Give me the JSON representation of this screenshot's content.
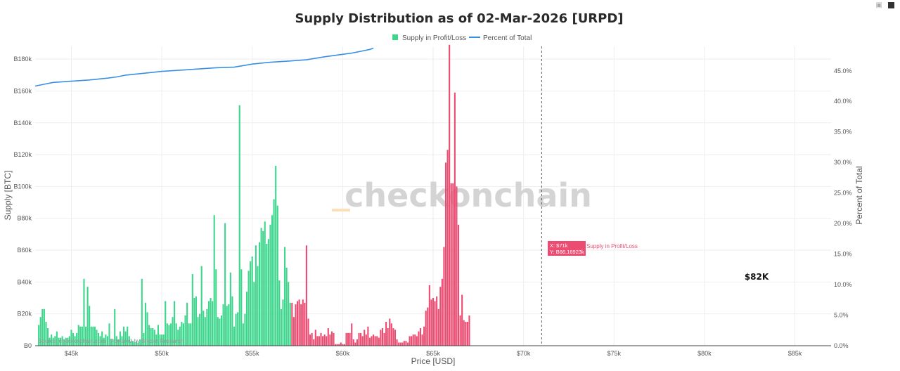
{
  "toolbar": {
    "camera_icon": "camera-icon",
    "logo_icon": "plotly-logo-icon"
  },
  "chart_data": {
    "type": "bar",
    "title": "Supply Distribution as of 02-Mar-2026 [URPD]",
    "xlabel": "Price [USD]",
    "ylabel": "Supply [BTC]",
    "y2label": "Percent of Total",
    "xlim": [
      43000,
      87000
    ],
    "ylim": [
      0,
      188000
    ],
    "y2lim": [
      0,
      0.49
    ],
    "x_ticks": [
      45000,
      50000,
      55000,
      60000,
      65000,
      70000,
      75000,
      80000,
      85000
    ],
    "x_tick_labels": [
      "$45k",
      "$50k",
      "$55k",
      "$60k",
      "$65k",
      "$70k",
      "$75k",
      "$80k",
      "$85k"
    ],
    "y_ticks": [
      0,
      20000,
      40000,
      60000,
      80000,
      100000,
      120000,
      140000,
      160000,
      180000
    ],
    "y_tick_labels": [
      "B0",
      "B20k",
      "B40k",
      "B60k",
      "B80k",
      "B100k",
      "B120k",
      "B140k",
      "B160k",
      "B180k"
    ],
    "y2_ticks": [
      0,
      0.05,
      0.1,
      0.15,
      0.2,
      0.25,
      0.3,
      0.35,
      0.4,
      0.45
    ],
    "y2_tick_labels": [
      "0.0%",
      "5.0%",
      "10.0%",
      "15.0%",
      "20.0%",
      "25.0%",
      "30.0%",
      "35.0%",
      "40.0%",
      "45.0%"
    ],
    "legend": [
      {
        "name": "Supply in Profit/Loss",
        "type": "bar",
        "color": "#3dd68c"
      },
      {
        "name": "Percent of Total",
        "type": "line",
        "color": "#3b8fe3"
      }
    ],
    "legend_position": "top-center",
    "profit_color": "#3dd68c",
    "loss_color": "#ec4c71",
    "bar_start": 43200,
    "bar_step": 100,
    "current_price": 71000,
    "profit_values": [
      13000,
      18000,
      23000,
      23000,
      15000,
      11000,
      5000,
      7000,
      5000,
      6000,
      9000,
      5000,
      5000,
      6000,
      4000,
      5000,
      5000,
      6000,
      10000,
      8000,
      6000,
      8000,
      13000,
      12000,
      12000,
      42000,
      12000,
      37000,
      25000,
      12000,
      12000,
      12000,
      10000,
      8000,
      6000,
      9000,
      5000,
      7000,
      6000,
      14000,
      4000,
      4000,
      23000,
      6000,
      4000,
      9000,
      6000,
      12000,
      9000,
      12000,
      6000,
      3000,
      3000,
      2000,
      3000,
      2000,
      4000,
      42000,
      8000,
      27000,
      21000,
      13000,
      11000,
      11000,
      10000,
      7000,
      13000,
      7000,
      7000,
      7000,
      28000,
      14000,
      13000,
      14000,
      18000,
      28000,
      14000,
      10000,
      12000,
      15000,
      14000,
      19000,
      27000,
      14000,
      14000,
      45000,
      30000,
      31000,
      18000,
      20000,
      50000,
      22000,
      18000,
      23000,
      28000,
      30000,
      28000,
      82000,
      48000,
      18000,
      17000,
      19000,
      26000,
      77000,
      25000,
      26000,
      46000,
      31000,
      12000,
      20000,
      21000,
      151000,
      48000,
      14000,
      20000,
      34000,
      47000,
      53000,
      56000,
      40000,
      63000,
      50000,
      65000,
      74000,
      72000,
      78000,
      64000,
      67000,
      76000,
      82000,
      92000,
      113000,
      88000,
      41000,
      23000,
      29000,
      62000,
      49000,
      40000,
      27000
    ],
    "loss_values": [
      27000,
      18000,
      26000,
      28000,
      29000,
      26000,
      29000,
      27000,
      63000,
      17000,
      7000,
      8000,
      4000,
      10000,
      6000,
      6000,
      8000,
      6000,
      7000,
      6000,
      11000,
      7000,
      9000,
      8000,
      1000,
      1000,
      1000,
      2000,
      1000,
      1000,
      8000,
      8000,
      8000,
      14000,
      4000,
      2000,
      4000,
      8000,
      8000,
      6000,
      10000,
      7000,
      12000,
      5000,
      6000,
      7000,
      6000,
      6000,
      5000,
      10000,
      11000,
      8000,
      15000,
      11000,
      17000,
      14000,
      11000,
      10000,
      4000,
      2000,
      2000,
      2000,
      3000,
      3000,
      2000,
      6000,
      6000,
      7000,
      7000,
      6000,
      9000,
      11000,
      7000,
      12000,
      22000,
      24000,
      38000,
      29000,
      30000,
      28000,
      31000,
      23000,
      37000,
      42000,
      62000,
      115000,
      123000,
      189000,
      102000,
      102000,
      159000,
      100000,
      76000,
      19000,
      32000,
      16000,
      15000,
      15000,
      19000
    ],
    "tooltip": {
      "x": "X: $71k",
      "y": "Y: B66.16923k",
      "series": "Supply in Profit/Loss"
    },
    "percent_series": {
      "x": [
        43000,
        43500,
        44000,
        44500,
        45000,
        46000,
        47000,
        47500,
        48000,
        49000,
        50000,
        51000,
        52000,
        53000,
        54000,
        55000,
        56000,
        57000,
        58000,
        59000,
        60000,
        60500,
        61000,
        61500,
        61700
      ],
      "y": [
        0.425,
        0.428,
        0.431,
        0.432,
        0.433,
        0.435,
        0.438,
        0.44,
        0.443,
        0.446,
        0.449,
        0.451,
        0.453,
        0.455,
        0.456,
        0.461,
        0.464,
        0.466,
        0.468,
        0.473,
        0.477,
        0.479,
        0.482,
        0.485,
        0.487
      ]
    },
    "annotations": [
      {
        "text": "$82K",
        "x": 82600,
        "y": 42000
      }
    ],
    "watermark": "checkonchain",
    "source_text": "Source: checkonchain.com | Powered by Bitcoin Research"
  }
}
